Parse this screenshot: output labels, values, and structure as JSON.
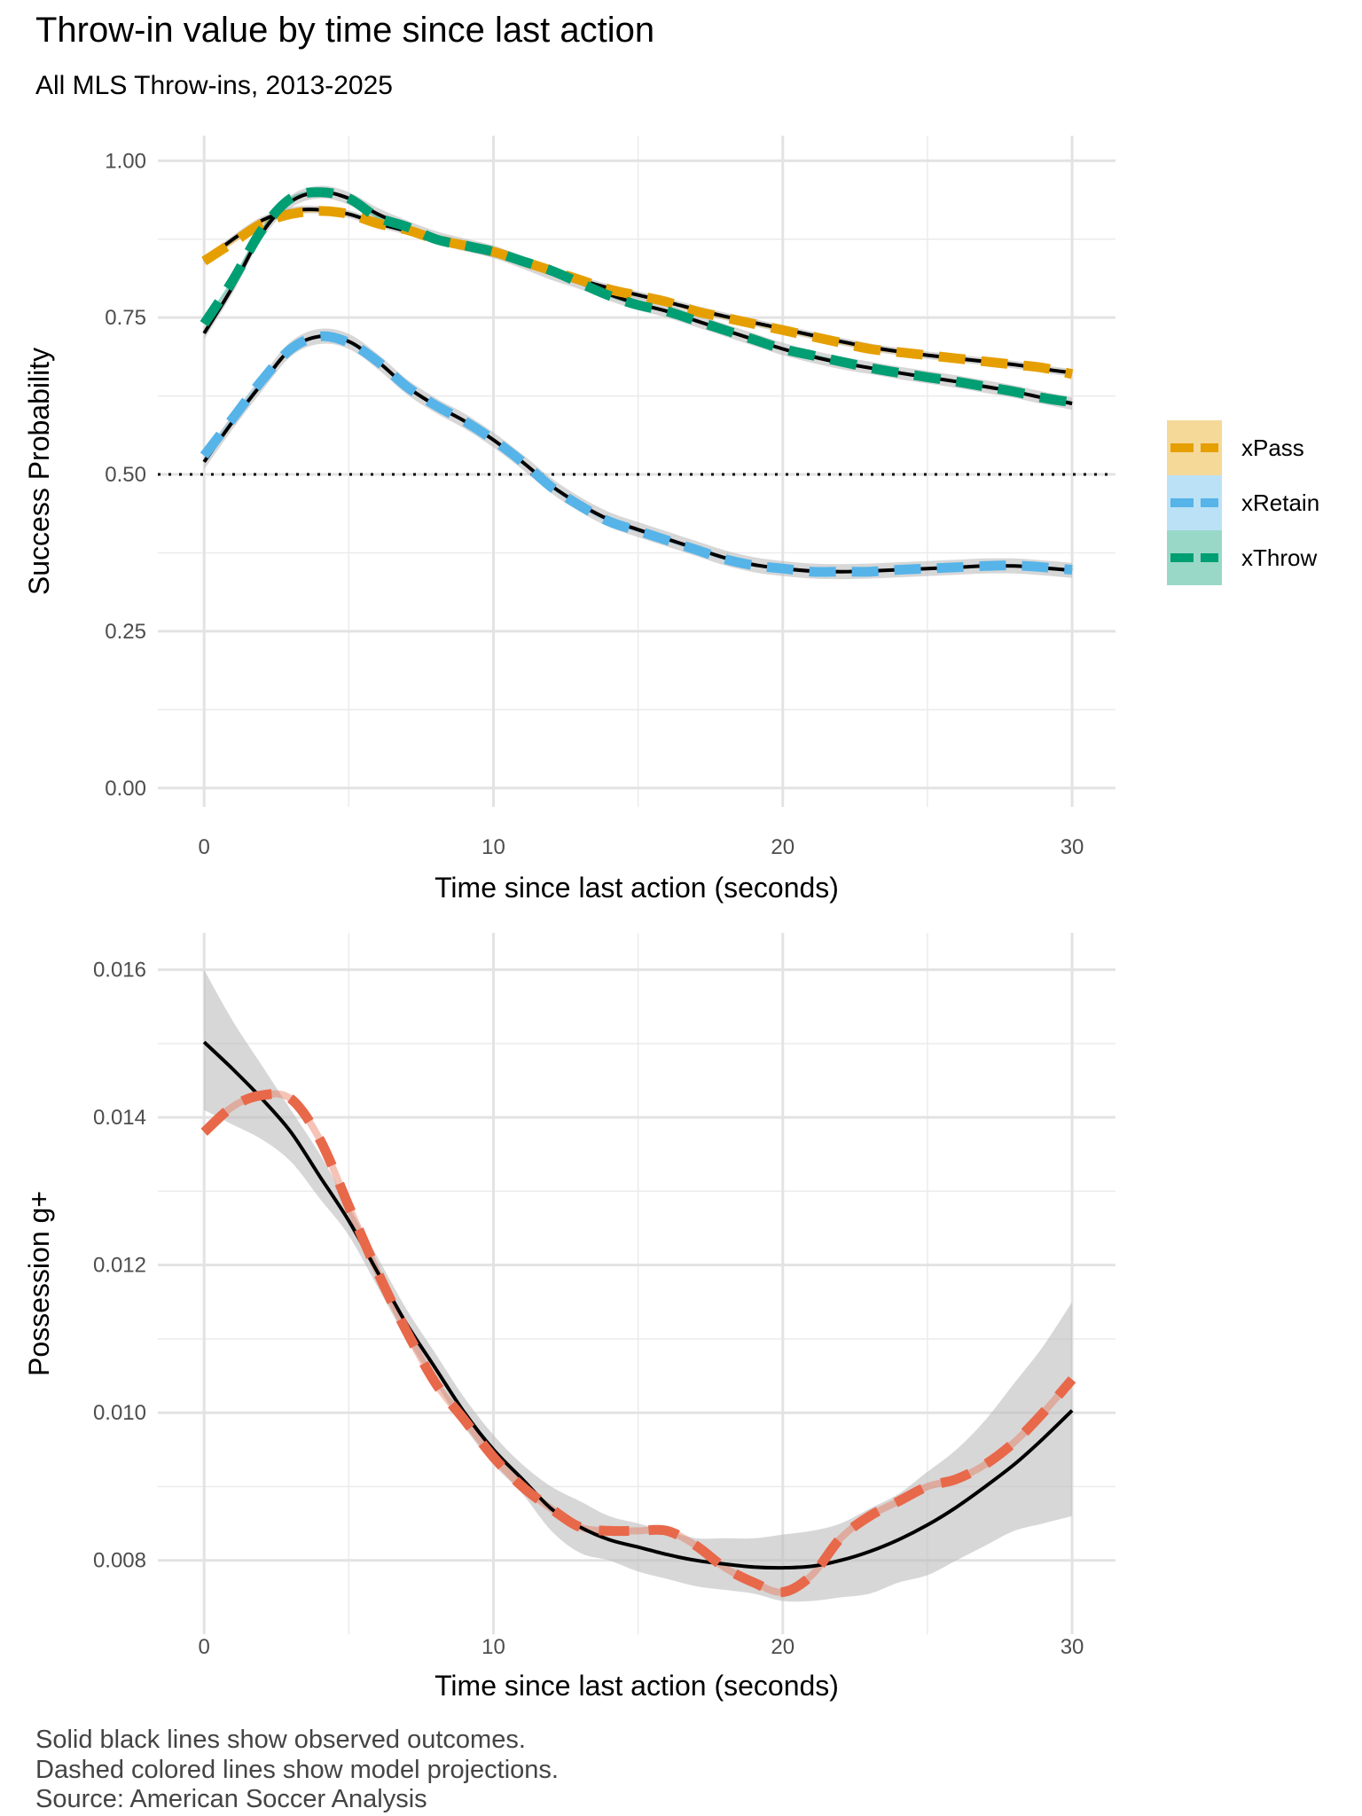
{
  "title": "Throw-in value by time since last action",
  "subtitle": "All MLS Throw-ins, 2013-2025",
  "caption": [
    "Solid black lines show observed outcomes.",
    "Dashed colored lines show model projections.",
    "Source: American Soccer Analysis"
  ],
  "colors": {
    "xPass": "#E69F00",
    "xRetain": "#56B4E9",
    "xThrow": "#009E73",
    "gplus": "#E8684A",
    "observed": "#000000",
    "ribbon": "#bdbdbd"
  },
  "chart_data": [
    {
      "type": "line",
      "xlabel": "Time since last action (seconds)",
      "ylabel": "Success Probability",
      "xlim": [
        -1.6,
        31.5
      ],
      "ylim": [
        -0.03,
        1.04
      ],
      "x_ticks": [
        0,
        10,
        20,
        30
      ],
      "x_tick_labels": [
        "0",
        "10",
        "20",
        "30"
      ],
      "y_ticks": [
        0.0,
        0.25,
        0.5,
        0.75,
        1.0
      ],
      "y_tick_labels": [
        "0.00",
        "0.25",
        "0.50",
        "0.75",
        "1.00"
      ],
      "reference_line": 0.5,
      "x": [
        0,
        1,
        2,
        3,
        4,
        5,
        6,
        7,
        8,
        9,
        10,
        11,
        12,
        13,
        14,
        15,
        16,
        17,
        18,
        19,
        20,
        21,
        22,
        23,
        24,
        25,
        26,
        27,
        28,
        29,
        30
      ],
      "series": [
        {
          "name": "xPass",
          "role": "model",
          "values": [
            0.84,
            0.87,
            0.9,
            0.915,
            0.92,
            0.915,
            0.9,
            0.89,
            0.875,
            0.865,
            0.855,
            0.84,
            0.825,
            0.81,
            0.795,
            0.785,
            0.775,
            0.76,
            0.75,
            0.74,
            0.73,
            0.72,
            0.71,
            0.7,
            0.695,
            0.69,
            0.685,
            0.68,
            0.675,
            0.67,
            0.66
          ]
        },
        {
          "name": "xRetain",
          "role": "model",
          "values": [
            0.53,
            0.59,
            0.65,
            0.7,
            0.72,
            0.71,
            0.68,
            0.64,
            0.61,
            0.585,
            0.555,
            0.52,
            0.48,
            0.45,
            0.425,
            0.41,
            0.395,
            0.38,
            0.365,
            0.355,
            0.35,
            0.345,
            0.345,
            0.345,
            0.348,
            0.35,
            0.352,
            0.354,
            0.355,
            0.352,
            0.348
          ]
        },
        {
          "name": "xThrow",
          "role": "model",
          "values": [
            0.74,
            0.81,
            0.89,
            0.94,
            0.95,
            0.94,
            0.91,
            0.895,
            0.875,
            0.865,
            0.855,
            0.84,
            0.825,
            0.805,
            0.785,
            0.77,
            0.76,
            0.745,
            0.73,
            0.715,
            0.7,
            0.69,
            0.68,
            0.67,
            0.662,
            0.655,
            0.648,
            0.64,
            0.632,
            0.622,
            0.615
          ]
        },
        {
          "name": "Observed xPass",
          "role": "observed",
          "ribbon": 0.006,
          "values": [
            0.84,
            0.875,
            0.905,
            0.92,
            0.922,
            0.915,
            0.9,
            0.888,
            0.875,
            0.863,
            0.852,
            0.84,
            0.826,
            0.81,
            0.797,
            0.786,
            0.775,
            0.763,
            0.752,
            0.742,
            0.732,
            0.722,
            0.712,
            0.703,
            0.696,
            0.69,
            0.685,
            0.68,
            0.675,
            0.668,
            0.662
          ]
        },
        {
          "name": "Observed xRetain",
          "role": "observed",
          "ribbon": 0.012,
          "values": [
            0.52,
            0.585,
            0.645,
            0.7,
            0.72,
            0.712,
            0.68,
            0.64,
            0.61,
            0.585,
            0.555,
            0.52,
            0.482,
            0.452,
            0.428,
            0.412,
            0.397,
            0.382,
            0.367,
            0.356,
            0.35,
            0.346,
            0.345,
            0.346,
            0.348,
            0.35,
            0.352,
            0.354,
            0.354,
            0.351,
            0.347
          ]
        },
        {
          "name": "Observed xThrow",
          "role": "observed",
          "ribbon": 0.01,
          "values": [
            0.725,
            0.8,
            0.885,
            0.935,
            0.95,
            0.94,
            0.915,
            0.895,
            0.878,
            0.866,
            0.855,
            0.838,
            0.82,
            0.805,
            0.787,
            0.772,
            0.76,
            0.745,
            0.73,
            0.715,
            0.7,
            0.688,
            0.678,
            0.67,
            0.662,
            0.655,
            0.648,
            0.64,
            0.632,
            0.622,
            0.613
          ]
        }
      ],
      "legend": {
        "position": "right",
        "entries": [
          "xPass",
          "xRetain",
          "xThrow"
        ]
      }
    },
    {
      "type": "line",
      "xlabel": "Time since last action (seconds)",
      "ylabel": "Possession g+",
      "xlim": [
        -1.6,
        31.5
      ],
      "ylim": [
        0.007,
        0.0165
      ],
      "x_ticks": [
        0,
        10,
        20,
        30
      ],
      "x_tick_labels": [
        "0",
        "10",
        "20",
        "30"
      ],
      "y_ticks": [
        0.008,
        0.01,
        0.012,
        0.014,
        0.016
      ],
      "y_tick_labels": [
        "0.008",
        "0.010",
        "0.012",
        "0.014",
        "0.016"
      ],
      "x": [
        0,
        1,
        2,
        3,
        4,
        5,
        6,
        7,
        8,
        9,
        10,
        11,
        12,
        13,
        14,
        15,
        16,
        17,
        18,
        19,
        20,
        21,
        22,
        23,
        24,
        25,
        26,
        27,
        28,
        29,
        30
      ],
      "series": [
        {
          "name": "Observed g+",
          "role": "observed",
          "values": [
            0.01502,
            0.01465,
            0.01425,
            0.0138,
            0.0132,
            0.0126,
            0.0119,
            0.0112,
            0.0106,
            0.01,
            0.0095,
            0.0091,
            0.0087,
            0.00845,
            0.00828,
            0.00818,
            0.00808,
            0.008,
            0.00795,
            0.00791,
            0.0079,
            0.00792,
            0.008,
            0.00812,
            0.00828,
            0.00848,
            0.00872,
            0.009,
            0.0093,
            0.00965,
            0.01003
          ],
          "ribbon_upper": [
            0.016,
            0.0153,
            0.0147,
            0.0141,
            0.0135,
            0.0128,
            0.0121,
            0.0114,
            0.0108,
            0.0102,
            0.0097,
            0.0093,
            0.009,
            0.0088,
            0.0086,
            0.0085,
            0.0084,
            0.0083,
            0.0083,
            0.0083,
            0.00835,
            0.0084,
            0.0085,
            0.0087,
            0.0089,
            0.0092,
            0.0095,
            0.0099,
            0.0104,
            0.0109,
            0.0115
          ],
          "ribbon_lower": [
            0.0141,
            0.0139,
            0.0137,
            0.0134,
            0.0129,
            0.0124,
            0.0117,
            0.011,
            0.0104,
            0.0098,
            0.0093,
            0.0089,
            0.0084,
            0.0081,
            0.008,
            0.00785,
            0.00775,
            0.00765,
            0.0076,
            0.00755,
            0.00745,
            0.00745,
            0.0075,
            0.00755,
            0.0077,
            0.0078,
            0.008,
            0.0082,
            0.0084,
            0.0085,
            0.0086
          ]
        },
        {
          "name": "Model g+",
          "role": "model",
          "values": [
            0.0138,
            0.01415,
            0.0143,
            0.01425,
            0.0137,
            0.0128,
            0.0119,
            0.0111,
            0.0104,
            0.0099,
            0.0094,
            0.009,
            0.0087,
            0.00845,
            0.0084,
            0.0084,
            0.0084,
            0.0082,
            0.0079,
            0.0077,
            0.00757,
            0.0078,
            0.0083,
            0.0086,
            0.0088,
            0.009,
            0.0091,
            0.0093,
            0.0096,
            0.01,
            0.01045
          ]
        }
      ]
    }
  ]
}
